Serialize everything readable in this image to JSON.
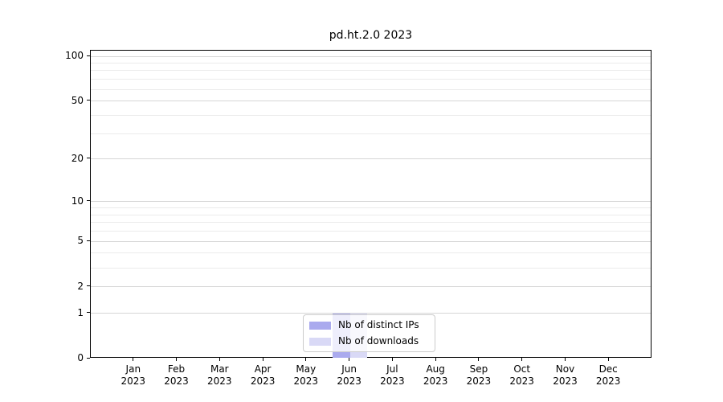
{
  "title": "pd.ht.2.0 2023",
  "chart_data": {
    "type": "bar",
    "title": "pd.ht.2.0 2023",
    "scale": "log10(value+1)",
    "grid": true,
    "legend_position": "lower center",
    "categories": [
      "Jan",
      "Feb",
      "Mar",
      "Apr",
      "May",
      "Jun",
      "Jul",
      "Aug",
      "Sep",
      "Oct",
      "Nov",
      "Dec"
    ],
    "category_year": "2023",
    "series": [
      {
        "name": "Nb of distinct IPs",
        "color": "#aaaaee",
        "values": [
          0,
          0,
          0,
          0,
          0,
          1,
          0,
          0,
          0,
          0,
          0,
          0
        ]
      },
      {
        "name": "Nb of downloads",
        "color": "#d9d9f6",
        "values": [
          0,
          0,
          0,
          0,
          0,
          1,
          0,
          0,
          0,
          0,
          0,
          0
        ]
      }
    ],
    "yticks": [
      0,
      1,
      2,
      5,
      10,
      20,
      50,
      100
    ],
    "minor_yticks": [
      3,
      4,
      6,
      7,
      8,
      9,
      30,
      40,
      60,
      70,
      80,
      90
    ],
    "ylim": [
      0,
      109
    ],
    "xlabel": "",
    "ylabel": ""
  }
}
